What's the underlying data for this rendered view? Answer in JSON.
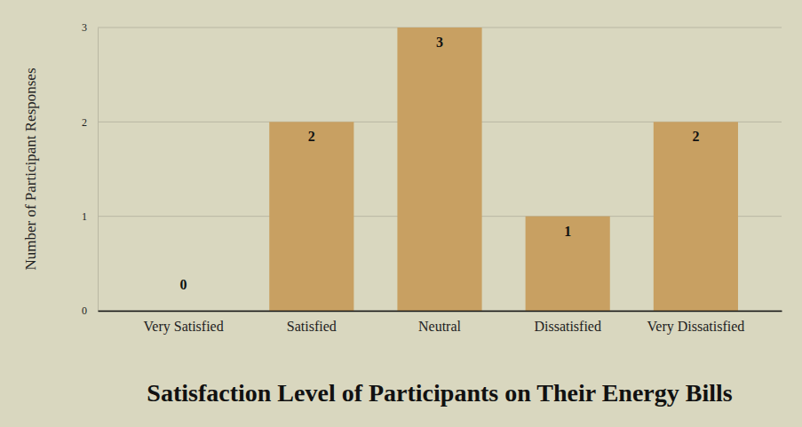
{
  "chart_data": {
    "type": "bar",
    "title": "Satisfaction Level of Participants on Their Energy Bills",
    "y_label": "Number of Participant Responses",
    "categories": [
      "Very Satisfied",
      "Satisfied",
      "Neutral",
      "Dissatisfied",
      "Very Dissatisfied"
    ],
    "values": [
      0,
      2,
      3,
      1,
      2
    ],
    "color": "#c8a062",
    "ylim": [
      0,
      3
    ],
    "yticks": [
      0,
      1,
      2,
      3
    ],
    "grid": true,
    "data_labels": true
  }
}
